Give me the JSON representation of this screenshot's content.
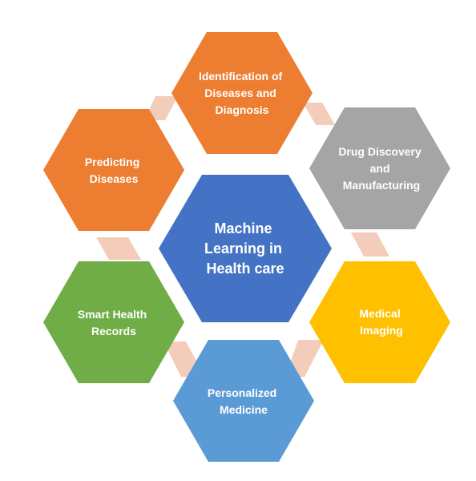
{
  "center": {
    "lines": [
      "Machine",
      "Learning in",
      "Health care"
    ],
    "color": "#4472C4"
  },
  "nodes": [
    {
      "id": "identification",
      "lines": [
        "Identification of",
        "Diseases and",
        "Diagnosis"
      ],
      "color": "#ED7D31"
    },
    {
      "id": "drug-discovery",
      "lines": [
        "Drug Discovery",
        "and",
        "Manufacturing"
      ],
      "color": "#A5A5A5"
    },
    {
      "id": "medical-imaging",
      "lines": [
        "Medical",
        "Imaging"
      ],
      "color": "#FFC000"
    },
    {
      "id": "personalized-medicine",
      "lines": [
        "Personalized",
        "Medicine"
      ],
      "color": "#5B9BD5"
    },
    {
      "id": "smart-health-records",
      "lines": [
        "Smart Health",
        "Records"
      ],
      "color": "#70AD47"
    },
    {
      "id": "predicting-diseases",
      "lines": [
        "Predicting",
        "Diseases"
      ],
      "color": "#ED7D31"
    }
  ],
  "connector_color": "#F4CCBA"
}
